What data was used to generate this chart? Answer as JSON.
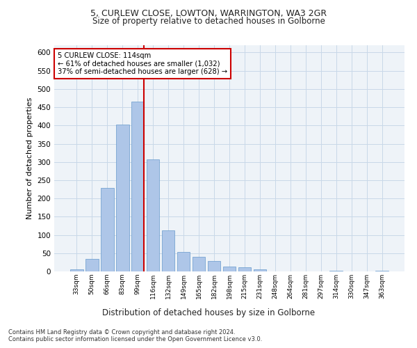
{
  "title1": "5, CURLEW CLOSE, LOWTON, WARRINGTON, WA3 2GR",
  "title2": "Size of property relative to detached houses in Golborne",
  "xlabel": "Distribution of detached houses by size in Golborne",
  "ylabel": "Number of detached properties",
  "categories": [
    "33sqm",
    "50sqm",
    "66sqm",
    "83sqm",
    "99sqm",
    "116sqm",
    "132sqm",
    "149sqm",
    "165sqm",
    "182sqm",
    "198sqm",
    "215sqm",
    "231sqm",
    "248sqm",
    "264sqm",
    "281sqm",
    "297sqm",
    "314sqm",
    "330sqm",
    "347sqm",
    "363sqm"
  ],
  "values": [
    5,
    35,
    228,
    403,
    465,
    308,
    112,
    54,
    40,
    29,
    14,
    11,
    5,
    0,
    0,
    0,
    0,
    2,
    0,
    0,
    2
  ],
  "bar_color": "#aec6e8",
  "bar_edge_color": "#6699cc",
  "annotation_text1": "5 CURLEW CLOSE: 114sqm",
  "annotation_text2": "← 61% of detached houses are smaller (1,032)",
  "annotation_text3": "37% of semi-detached houses are larger (628) →",
  "annotation_box_color": "#ffffff",
  "annotation_border_color": "#cc0000",
  "vline_color": "#cc0000",
  "grid_color": "#c8d8e8",
  "background_color": "#eef3f8",
  "footer1": "Contains HM Land Registry data © Crown copyright and database right 2024.",
  "footer2": "Contains public sector information licensed under the Open Government Licence v3.0.",
  "ylim": [
    0,
    620
  ],
  "yticks": [
    0,
    50,
    100,
    150,
    200,
    250,
    300,
    350,
    400,
    450,
    500,
    550,
    600
  ]
}
